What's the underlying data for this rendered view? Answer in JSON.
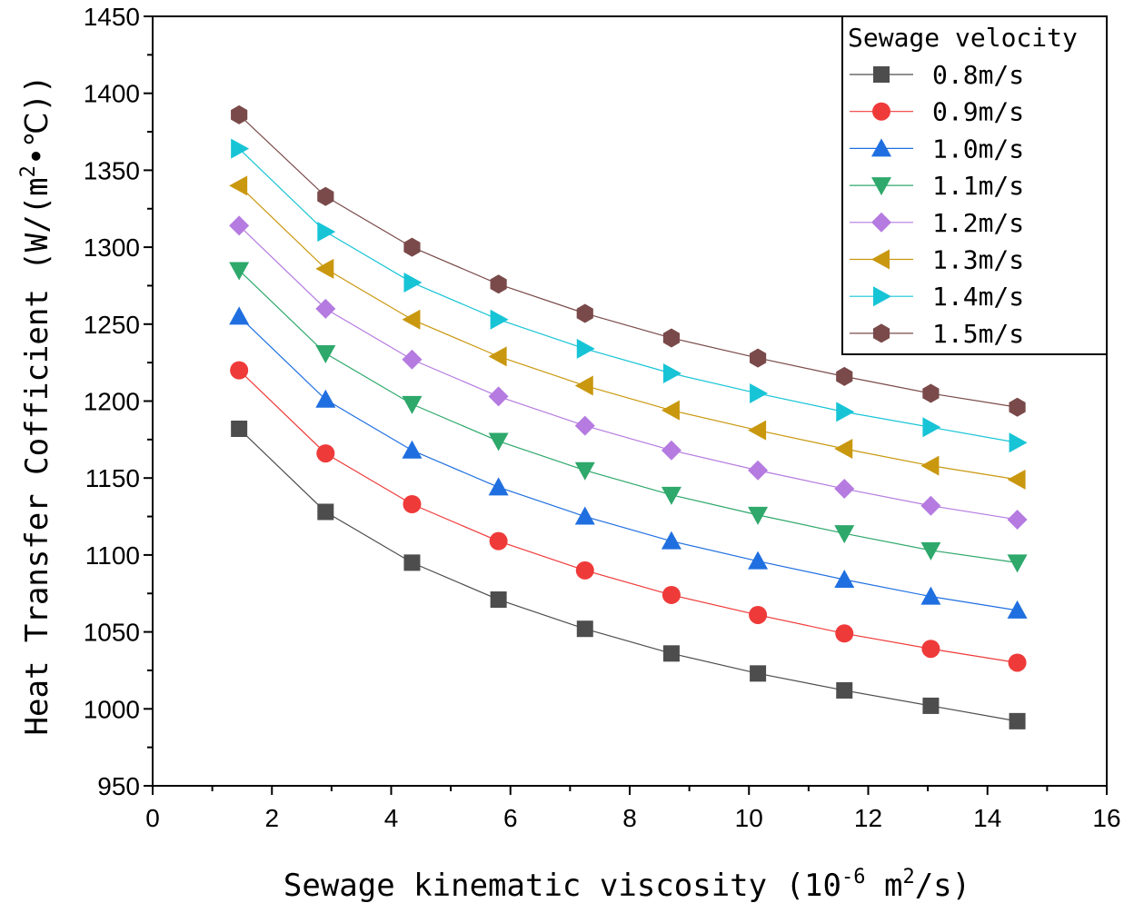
{
  "chart_data": {
    "type": "line",
    "xlabel": "Sewage kinematic viscosity (10",
    "xlabel_exp": "-6",
    "xlabel_tail": " m",
    "xlabel_sup2": "2",
    "xlabel_end": "/s)",
    "ylabel": "Heat Transfer Cofficient (W/(m",
    "ylabel_sup": "2",
    "ylabel_end": "•℃))",
    "xlim": [
      0,
      16
    ],
    "ylim": [
      950,
      1450
    ],
    "xticks": [
      "0",
      "2",
      "4",
      "6",
      "8",
      "10",
      "12",
      "14",
      "16"
    ],
    "yticks": [
      "950",
      "1000",
      "1050",
      "1100",
      "1150",
      "1200",
      "1250",
      "1300",
      "1350",
      "1400",
      "1450"
    ],
    "legend_title": "Sewage velocity",
    "legend_position": "top-right",
    "grid": false,
    "x": [
      1.45,
      2.9,
      4.35,
      5.8,
      7.25,
      8.7,
      10.15,
      11.6,
      13.05,
      14.5
    ],
    "series": [
      {
        "name": "0.8m/s",
        "color": "#4d4d4d",
        "marker": "square",
        "values": [
          1182,
          1128,
          1095,
          1071,
          1052,
          1036,
          1023,
          1012,
          1002,
          992
        ]
      },
      {
        "name": "0.9m/s",
        "color": "#ef3a3a",
        "marker": "circle",
        "values": [
          1220,
          1166,
          1133,
          1109,
          1090,
          1074,
          1061,
          1049,
          1039,
          1030
        ]
      },
      {
        "name": "1.0m/s",
        "color": "#1f6fe0",
        "marker": "triangle-up",
        "values": [
          1255,
          1201,
          1168,
          1144,
          1125,
          1109,
          1096,
          1084,
          1073,
          1064
        ]
      },
      {
        "name": "1.1m/s",
        "color": "#2ea86b",
        "marker": "triangle-down",
        "values": [
          1285,
          1231,
          1198,
          1174,
          1155,
          1139,
          1126,
          1114,
          1103,
          1095
        ]
      },
      {
        "name": "1.2m/s",
        "color": "#b57be0",
        "marker": "diamond",
        "values": [
          1314,
          1260,
          1227,
          1203,
          1184,
          1168,
          1155,
          1143,
          1132,
          1123
        ]
      },
      {
        "name": "1.3m/s",
        "color": "#c9980f",
        "marker": "triangle-left",
        "values": [
          1340,
          1286,
          1253,
          1229,
          1210,
          1194,
          1181,
          1169,
          1158,
          1149
        ]
      },
      {
        "name": "1.4m/s",
        "color": "#17c4d6",
        "marker": "triangle-right",
        "values": [
          1364,
          1310,
          1277,
          1253,
          1234,
          1218,
          1205,
          1193,
          1183,
          1173
        ]
      },
      {
        "name": "1.5m/s",
        "color": "#7a4a4a",
        "marker": "hexagon",
        "values": [
          1386,
          1333,
          1300,
          1276,
          1257,
          1241,
          1228,
          1216,
          1205,
          1196
        ]
      }
    ]
  }
}
